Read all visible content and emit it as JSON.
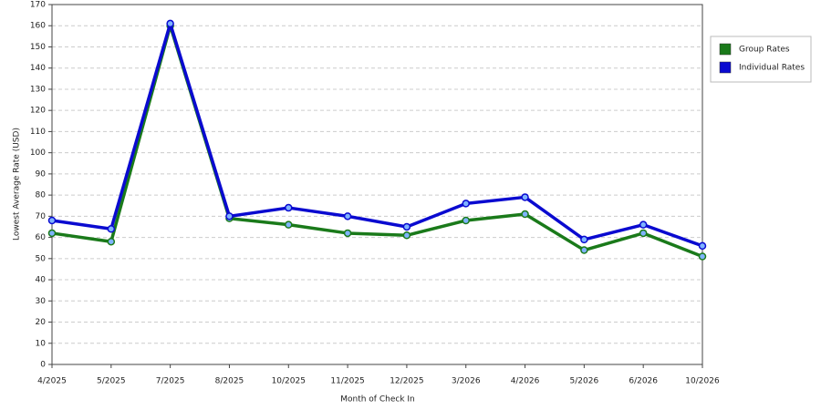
{
  "chart_data": {
    "type": "line",
    "x_label": "Month of Check In",
    "y_label": "Lowest Average Rate (USD)",
    "categories": [
      "4/2025",
      "5/2025",
      "7/2025",
      "8/2025",
      "10/2025",
      "11/2025",
      "12/2025",
      "3/2026",
      "4/2026",
      "5/2026",
      "6/2026",
      "10/2026"
    ],
    "series": [
      {
        "name": "Group Rates",
        "color": "#1a7a1a",
        "values": [
          62,
          58,
          160,
          69,
          66,
          62,
          61,
          68,
          71,
          54,
          62,
          51
        ]
      },
      {
        "name": "Individual Rates",
        "color": "#0a0ad0",
        "values": [
          68,
          64,
          161,
          70,
          74,
          70,
          65,
          76,
          79,
          59,
          66,
          56
        ]
      }
    ],
    "ylim": [
      0,
      170
    ],
    "yticks": [
      0,
      10,
      20,
      30,
      40,
      50,
      60,
      70,
      80,
      90,
      100,
      110,
      120,
      130,
      140,
      150,
      160,
      170
    ],
    "grid": true,
    "legend": "right"
  }
}
